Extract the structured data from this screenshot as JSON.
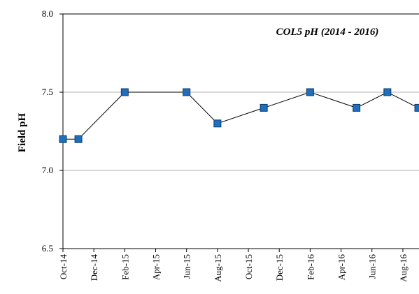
{
  "chart_data": {
    "type": "line",
    "title": "COL5 pH (2014 - 2016)",
    "y_label": "Field pH",
    "x": [
      "Oct-14",
      "Nov-14",
      "Feb-15",
      "Jun-15",
      "Aug-15",
      "Nov-15",
      "Feb-16",
      "May-16",
      "Jul-16",
      "Sep-16"
    ],
    "series": [
      {
        "name": "COL5",
        "color": "#1f6fbf",
        "values": [
          7.2,
          7.2,
          7.5,
          7.5,
          7.3,
          7.4,
          7.5,
          7.4,
          7.5,
          7.4
        ]
      }
    ],
    "xlim": [
      "Oct-14",
      "Sep-16"
    ],
    "xticks": [
      "Oct-14",
      "Dec-14",
      "Feb-15",
      "Apr-15",
      "Jun-15",
      "Aug-15",
      "Oct-15",
      "Dec-15",
      "Feb-16",
      "Apr-16",
      "Jun-16",
      "Aug-16"
    ],
    "ylim": [
      6.5,
      8.0
    ],
    "yticks": [
      {
        "value": 6.5,
        "label": "6.5"
      },
      {
        "value": 7.0,
        "label": "7.0"
      },
      {
        "value": 7.5,
        "label": "7.5"
      },
      {
        "value": 8.0,
        "label": "8.0"
      }
    ],
    "grid": true
  }
}
